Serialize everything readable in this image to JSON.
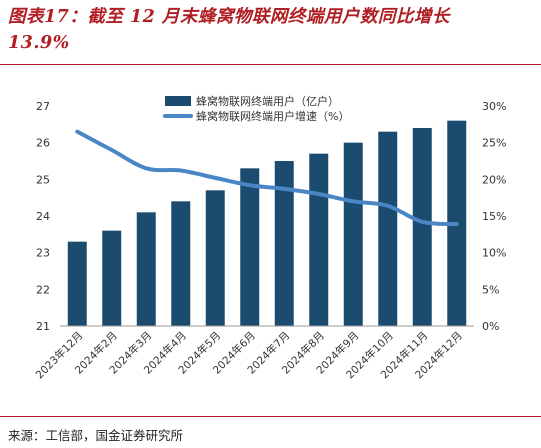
{
  "header": {
    "title_line1": "图表17：截至 12 月末蜂窝物联网终端用户数同比增长",
    "title_line2": "13.9%"
  },
  "footer": {
    "source": "来源：工信部，国金证券研究所"
  },
  "colors": {
    "title": "#b01f24",
    "bar": "#1b4b6e",
    "line": "#4a86c6",
    "text": "#333333"
  },
  "chart_data": {
    "type": "bar",
    "categories": [
      "2023年12月",
      "2024年2月",
      "2024年3月",
      "2024年4月",
      "2024年5月",
      "2024年6月",
      "2024年7月",
      "2024年8月",
      "2024年9月",
      "2024年10月",
      "2024年11月",
      "2024年12月"
    ],
    "series": [
      {
        "name": "蜂窝物联网终端用户（亿户）",
        "type": "bar",
        "axis": "left",
        "values": [
          23.3,
          23.6,
          24.1,
          24.4,
          24.7,
          25.3,
          25.5,
          25.7,
          26.0,
          26.3,
          26.4,
          26.6
        ]
      },
      {
        "name": "蜂窝物联网终端用户增速（%）",
        "type": "line",
        "axis": "right",
        "values": [
          26.5,
          24.0,
          21.5,
          21.2,
          20.2,
          19.2,
          18.7,
          18.0,
          17.0,
          16.4,
          14.2,
          13.9
        ]
      }
    ],
    "yleft": {
      "ylim": [
        21,
        27
      ],
      "ticks": [
        "21",
        "22",
        "23",
        "24",
        "25",
        "26",
        "27"
      ]
    },
    "yright": {
      "ylim": [
        0,
        30
      ],
      "ticks": [
        "0%",
        "5%",
        "10%",
        "15%",
        "20%",
        "25%",
        "30%"
      ]
    },
    "grid": false,
    "legend_position": "top-center"
  }
}
